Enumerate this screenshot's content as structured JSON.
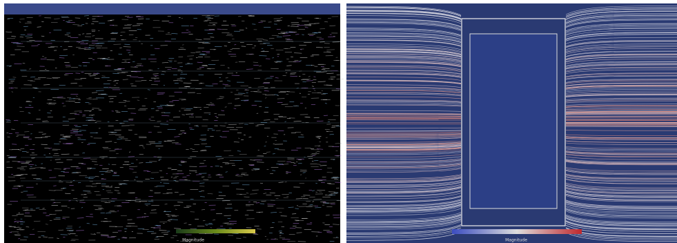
{
  "panels": [
    {
      "colorbar_label": "Magnitude"
    },
    {
      "colorbar_label": "Magnitude"
    }
  ]
}
